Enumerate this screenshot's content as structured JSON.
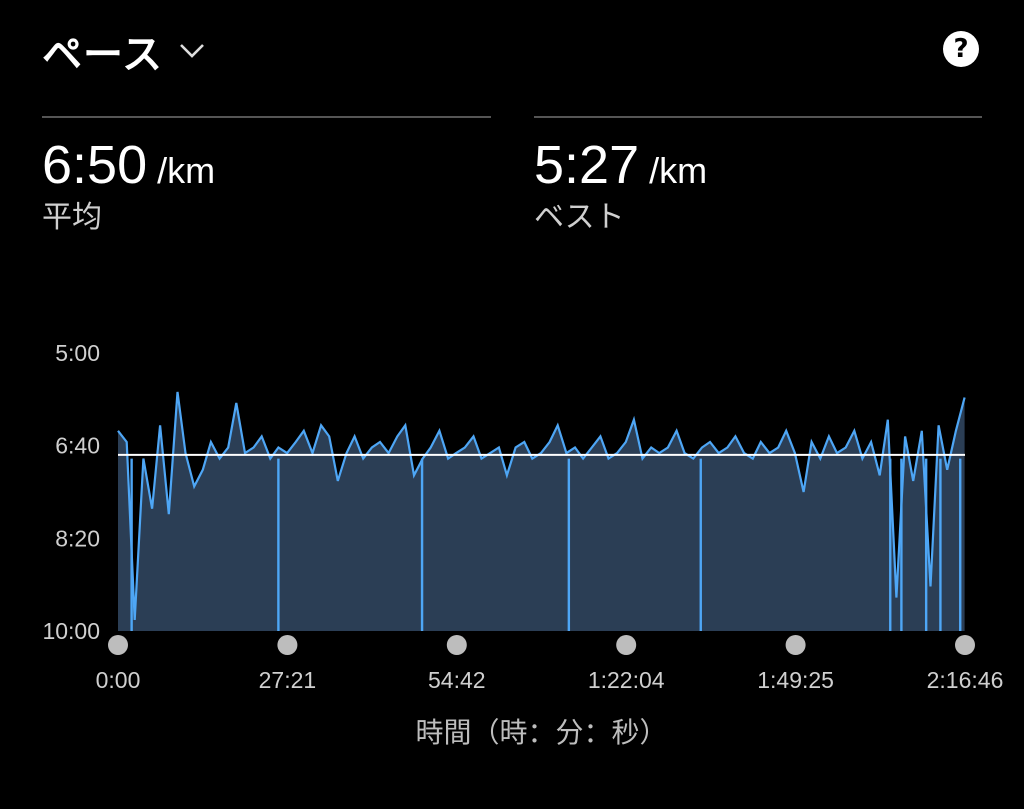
{
  "header": {
    "metric_name": "ペース"
  },
  "stats": [
    {
      "value": "6:50",
      "unit": "/km",
      "label": "平均"
    },
    {
      "value": "5:27",
      "unit": "/km",
      "label": "ベスト"
    }
  ],
  "icons": {
    "dropdown": "chevron-down-icon",
    "help": "help-icon"
  },
  "colors": {
    "line": "#4ea6f5",
    "fill": "#2b3e55",
    "average_line": "#ffffff",
    "background": "#000000"
  },
  "chart_data": {
    "type": "area",
    "xlabel": "時間（時：分：秒）",
    "x_tick_labels": [
      "0:00",
      "27:21",
      "54:42",
      "1:22:04",
      "1:49:25",
      "2:16:46"
    ],
    "y_tick_labels": [
      "5:00",
      "6:40",
      "8:20",
      "10:00"
    ],
    "y_ticks_min_per_km": [
      5.0,
      6.667,
      8.333,
      10.0
    ],
    "ylim_min_per_km": [
      5.0,
      10.0
    ],
    "y_inverted": true,
    "x_range_min": [
      0,
      136.77
    ],
    "average_min_per_km": 6.833,
    "x_min": [
      0,
      1.4,
      2.7,
      4.1,
      5.5,
      6.8,
      8.2,
      9.6,
      10.9,
      12.3,
      13.7,
      15.0,
      16.4,
      17.8,
      19.1,
      20.5,
      21.9,
      23.2,
      24.6,
      25.9,
      27.3,
      28.7,
      30.0,
      31.4,
      32.8,
      34.1,
      35.5,
      36.9,
      38.2,
      39.6,
      41.0,
      42.3,
      43.7,
      45.1,
      46.4,
      47.8,
      49.2,
      50.5,
      51.9,
      53.3,
      54.6,
      56.0,
      57.4,
      58.7,
      60.1,
      61.5,
      62.8,
      64.2,
      65.6,
      66.9,
      68.3,
      69.7,
      71.0,
      72.4,
      73.8,
      75.1,
      76.5,
      77.9,
      79.2,
      80.6,
      82.0,
      83.3,
      84.7,
      86.1,
      87.4,
      88.8,
      90.2,
      91.5,
      92.9,
      94.3,
      95.6,
      97.0,
      98.4,
      99.7,
      101.1,
      102.5,
      103.8,
      105.2,
      106.6,
      107.9,
      109.3,
      110.7,
      112.0,
      113.4,
      114.8,
      116.1,
      117.5,
      118.9,
      120.2,
      121.6,
      123.0,
      124.3,
      125.7,
      127.1,
      128.4,
      129.8,
      131.2,
      132.5,
      133.9,
      135.3,
      136.7
    ],
    "pace_min_per_km": [
      6.4,
      6.6,
      9.8,
      6.9,
      7.8,
      6.3,
      7.9,
      5.7,
      6.8,
      7.4,
      7.1,
      6.6,
      6.9,
      6.7,
      5.9,
      6.8,
      6.7,
      6.5,
      6.9,
      6.7,
      6.8,
      6.6,
      6.4,
      6.8,
      6.3,
      6.5,
      7.3,
      6.8,
      6.5,
      6.9,
      6.7,
      6.6,
      6.8,
      6.5,
      6.3,
      7.2,
      6.9,
      6.7,
      6.4,
      6.9,
      6.8,
      6.7,
      6.5,
      6.9,
      6.8,
      6.7,
      7.2,
      6.7,
      6.6,
      6.9,
      6.8,
      6.6,
      6.3,
      6.8,
      6.7,
      6.9,
      6.7,
      6.5,
      6.9,
      6.8,
      6.6,
      6.2,
      6.9,
      6.7,
      6.8,
      6.7,
      6.4,
      6.8,
      6.9,
      6.7,
      6.6,
      6.8,
      6.7,
      6.5,
      6.8,
      6.9,
      6.6,
      6.8,
      6.7,
      6.4,
      6.8,
      7.5,
      6.6,
      6.9,
      6.5,
      6.8,
      6.7,
      6.4,
      6.9,
      6.6,
      7.2,
      6.2,
      9.4,
      6.5,
      7.3,
      6.4,
      9.2,
      6.3,
      7.1,
      6.4,
      5.8
    ],
    "dips_min": [
      2.2,
      25.9,
      49.1,
      72.8,
      94.1,
      124.7,
      126.5,
      130.5,
      132.8,
      136.0
    ],
    "dip_value_min_per_km": 10.0
  },
  "xlabel": "時間（時：分：秒）"
}
